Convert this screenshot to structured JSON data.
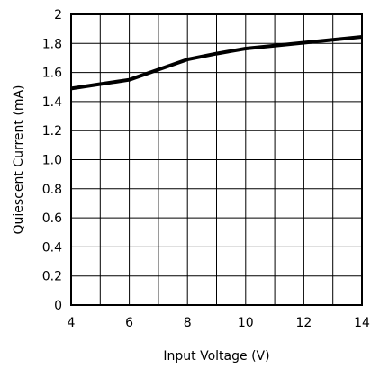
{
  "chart_data": {
    "type": "line",
    "title": "",
    "xlabel": "Input Voltage (V)",
    "ylabel": "Quiescent Current (mA)",
    "xlim": [
      4,
      14
    ],
    "ylim": [
      0,
      2
    ],
    "xticks": [
      "4",
      "6",
      "8",
      "10",
      "12",
      "14"
    ],
    "yticks": [
      "0",
      "0.2",
      "0.4",
      "0.6",
      "0.8",
      "1.0",
      "1.2",
      "1.4",
      "1.6",
      "1.8",
      "2"
    ],
    "grid": true,
    "series": [
      {
        "color": "#000000",
        "x": [
          4,
          5,
          6,
          7,
          8,
          9,
          10,
          11,
          12,
          13,
          14
        ],
        "y": [
          1.49,
          1.52,
          1.55,
          1.62,
          1.69,
          1.73,
          1.765,
          1.785,
          1.805,
          1.825,
          1.845
        ]
      }
    ]
  }
}
